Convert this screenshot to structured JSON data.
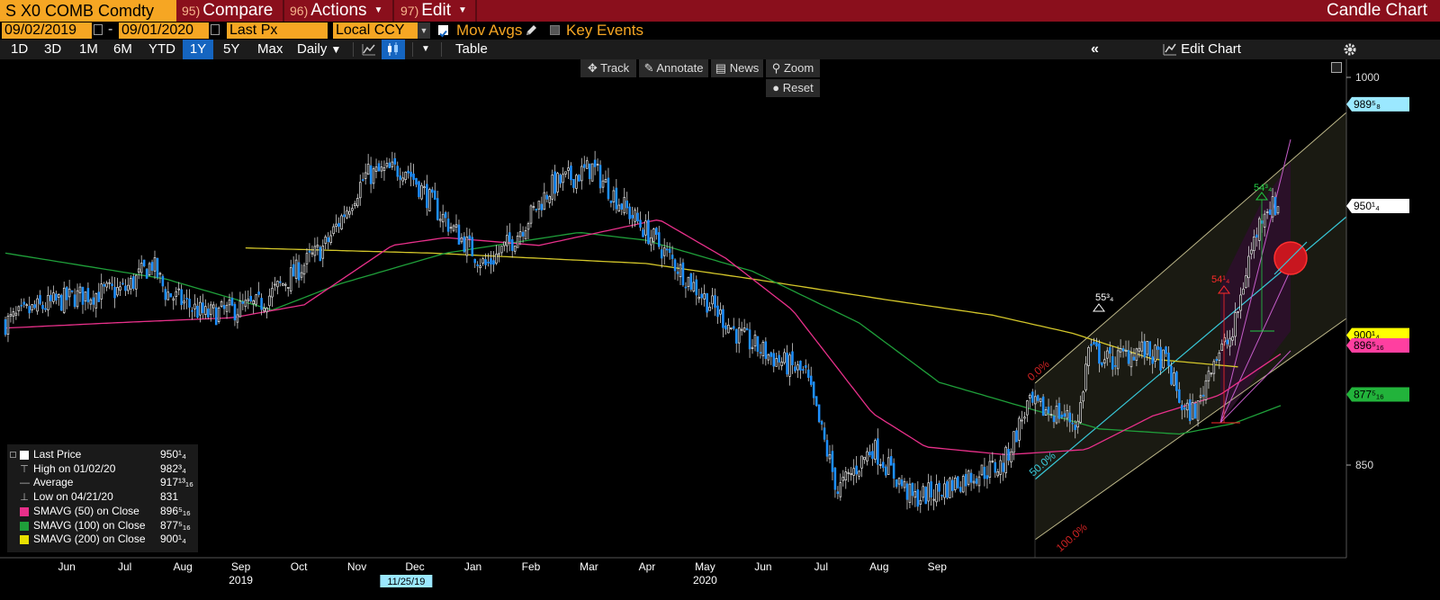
{
  "header": {
    "ticker": "S X0 COMB Comdty",
    "compare_num": "95)",
    "compare_label": "Compare",
    "actions_num": "96)",
    "actions_label": "Actions",
    "edit_num": "97)",
    "edit_label": "Edit",
    "title": "Candle Chart"
  },
  "controls": {
    "start_date": "09/02/2019",
    "date_sep": "-",
    "end_date": "09/01/2020",
    "price_field": "Last Px",
    "currency": "Local CCY",
    "mov_avgs_label": "Mov Avgs",
    "mov_avgs_checked": true,
    "key_events_label": "Key Events",
    "key_events_checked": false
  },
  "periods": [
    "1D",
    "3D",
    "1M",
    "6M",
    "YTD",
    "1Y",
    "5Y",
    "Max"
  ],
  "selected_period": "1Y",
  "frequency": "Daily",
  "table_label": "Table",
  "edit_chart_label": "Edit Chart",
  "tools": {
    "track": "Track",
    "annotate": "Annotate",
    "news": "News",
    "zoom": "Zoom",
    "reset": "Reset"
  },
  "colors": {
    "up": "#e8e8e8",
    "down": "#1e90ff",
    "sma50": "#e8308a",
    "sma100": "#1f9f3a",
    "sma200": "#d4c72a",
    "channel_mid": "#38c9d9",
    "header_bg": "#8a0f1c",
    "accent": "#f6a623"
  },
  "chart_data": {
    "type": "candlestick",
    "ylim": [
      815,
      1005
    ],
    "yticks": [
      {
        "label": "1000",
        "value": 1000
      },
      {
        "label": "850",
        "value": 850
      }
    ],
    "price_tags": [
      {
        "label": "989⁵₈",
        "value": 989.6,
        "color": "#9be8ff"
      },
      {
        "label": "950¹₄",
        "value": 950.25,
        "color": "#ffffff"
      },
      {
        "label": "900¹₄",
        "value": 900.25,
        "color": "#ffff00"
      },
      {
        "label": "896⁵₁₆",
        "value": 896.3,
        "color": "#ff3fa0"
      },
      {
        "label": "877⁵₁₆",
        "value": 877.3,
        "color": "#22b33b"
      }
    ],
    "x_months": [
      "Jun",
      "Jul",
      "Aug",
      "Sep",
      "Oct",
      "Nov",
      "Dec",
      "Jan",
      "Feb",
      "Mar",
      "Apr",
      "May",
      "Jun",
      "Jul",
      "Aug",
      "Sep"
    ],
    "x_years": [
      {
        "label": "2019",
        "month_index": 3
      },
      {
        "label": "2020",
        "month_index": 11
      }
    ],
    "crosshair_date": "11/25/19",
    "ohlc_keypoints": [
      {
        "i": 0,
        "close": 905
      },
      {
        "i": 10,
        "close": 910
      },
      {
        "i": 25,
        "close": 915
      },
      {
        "i": 45,
        "close": 918
      },
      {
        "i": 55,
        "close": 928
      },
      {
        "i": 60,
        "close": 917
      },
      {
        "i": 75,
        "close": 908
      },
      {
        "i": 95,
        "close": 912
      },
      {
        "i": 120,
        "close": 935
      },
      {
        "i": 135,
        "close": 962
      },
      {
        "i": 150,
        "close": 965
      },
      {
        "i": 163,
        "close": 947
      },
      {
        "i": 180,
        "close": 927
      },
      {
        "i": 190,
        "close": 937
      },
      {
        "i": 205,
        "close": 958
      },
      {
        "i": 220,
        "close": 965
      },
      {
        "i": 230,
        "close": 952
      },
      {
        "i": 245,
        "close": 935
      },
      {
        "i": 260,
        "close": 917
      },
      {
        "i": 275,
        "close": 900
      },
      {
        "i": 287,
        "close": 892
      },
      {
        "i": 300,
        "close": 885
      },
      {
        "i": 312,
        "close": 840
      },
      {
        "i": 325,
        "close": 857
      },
      {
        "i": 340,
        "close": 837
      },
      {
        "i": 350,
        "close": 840
      },
      {
        "i": 362,
        "close": 846
      },
      {
        "i": 374,
        "close": 850
      },
      {
        "i": 383,
        "close": 873
      },
      {
        "i": 395,
        "close": 870
      },
      {
        "i": 402,
        "close": 866
      },
      {
        "i": 406,
        "close": 895
      },
      {
        "i": 414,
        "close": 890
      },
      {
        "i": 425,
        "close": 895
      },
      {
        "i": 435,
        "close": 890
      },
      {
        "i": 442,
        "close": 870
      },
      {
        "i": 447,
        "close": 872
      },
      {
        "i": 452,
        "close": 890
      },
      {
        "i": 460,
        "close": 900
      },
      {
        "i": 466,
        "close": 930
      },
      {
        "i": 472,
        "close": 950
      }
    ],
    "sma50_keypoints": [
      {
        "i": 0,
        "v": 903
      },
      {
        "i": 40,
        "v": 905
      },
      {
        "i": 85,
        "v": 907
      },
      {
        "i": 112,
        "v": 912
      },
      {
        "i": 145,
        "v": 935
      },
      {
        "i": 165,
        "v": 938
      },
      {
        "i": 200,
        "v": 935
      },
      {
        "i": 245,
        "v": 945
      },
      {
        "i": 270,
        "v": 930
      },
      {
        "i": 295,
        "v": 910
      },
      {
        "i": 325,
        "v": 870
      },
      {
        "i": 345,
        "v": 857
      },
      {
        "i": 375,
        "v": 854
      },
      {
        "i": 405,
        "v": 856
      },
      {
        "i": 430,
        "v": 869
      },
      {
        "i": 455,
        "v": 877
      },
      {
        "i": 478,
        "v": 893
      }
    ],
    "sma100_keypoints": [
      {
        "i": 0,
        "v": 932
      },
      {
        "i": 60,
        "v": 922
      },
      {
        "i": 100,
        "v": 910
      },
      {
        "i": 125,
        "v": 920
      },
      {
        "i": 165,
        "v": 932
      },
      {
        "i": 215,
        "v": 940
      },
      {
        "i": 240,
        "v": 937
      },
      {
        "i": 280,
        "v": 925
      },
      {
        "i": 320,
        "v": 905
      },
      {
        "i": 350,
        "v": 882
      },
      {
        "i": 380,
        "v": 873
      },
      {
        "i": 410,
        "v": 864
      },
      {
        "i": 440,
        "v": 862
      },
      {
        "i": 460,
        "v": 866
      },
      {
        "i": 478,
        "v": 873
      }
    ],
    "sma200_keypoints": [
      {
        "i": 90,
        "v": 934
      },
      {
        "i": 160,
        "v": 932
      },
      {
        "i": 240,
        "v": 928
      },
      {
        "i": 280,
        "v": 922
      },
      {
        "i": 330,
        "v": 914
      },
      {
        "i": 370,
        "v": 908
      },
      {
        "i": 400,
        "v": 901
      },
      {
        "i": 430,
        "v": 891
      },
      {
        "i": 462,
        "v": 888
      }
    ],
    "annotations": [
      {
        "label": "55³₄",
        "color": "#ffffff"
      },
      {
        "label": "54¹₄",
        "color": "#ff2a2a"
      },
      {
        "label": "54³₄",
        "color": "#22cc44"
      },
      {
        "label": "0.0%",
        "color": "#cc2222"
      },
      {
        "label": "50.0%",
        "color": "#38c9d9"
      },
      {
        "label": "100.0%",
        "color": "#cc2222"
      }
    ],
    "legend": [
      {
        "name": "Last Price",
        "value": "950¹₄",
        "color": "#ffffff",
        "marker": "box"
      },
      {
        "name": "High on 01/02/20",
        "value": "982³₄",
        "color": "#bbbbbb",
        "marker": "high"
      },
      {
        "name": "Average",
        "value": "917¹³₁₆",
        "color": "#bbbbbb",
        "marker": "avg"
      },
      {
        "name": "Low on 04/21/20",
        "value": "831",
        "color": "#bbbbbb",
        "marker": "low"
      },
      {
        "name": "SMAVG (50)  on Close",
        "value": "896⁵₁₆",
        "color": "#e8308a",
        "marker": "box"
      },
      {
        "name": "SMAVG (100)  on Close",
        "value": "877⁵₁₆",
        "color": "#1f9f3a",
        "marker": "box"
      },
      {
        "name": "SMAVG (200)  on Close",
        "value": "900¹₄",
        "color": "#e8e000",
        "marker": "box"
      }
    ]
  }
}
